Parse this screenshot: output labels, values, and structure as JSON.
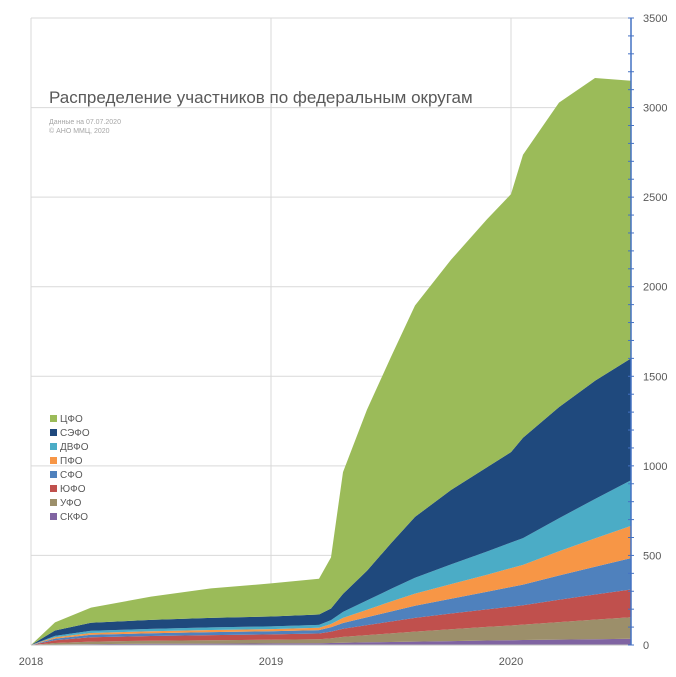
{
  "chart_data": {
    "type": "area",
    "stacked": true,
    "title": "Распределение участников по федеральным округам",
    "notes": [
      "Данные на 07.07.2020",
      "© АНО ММЦ, 2020"
    ],
    "x": [
      2018.0,
      2018.1,
      2018.25,
      2018.5,
      2018.75,
      2019.0,
      2019.2,
      2019.25,
      2019.3,
      2019.4,
      2019.5,
      2019.6,
      2019.75,
      2019.9,
      2020.0,
      2020.05,
      2020.2,
      2020.35,
      2020.5
    ],
    "x_ticks": [
      {
        "value": 2018,
        "label": "2018"
      },
      {
        "value": 2019,
        "label": "2019"
      },
      {
        "value": 2020,
        "label": "2020"
      }
    ],
    "y_ticks": [
      0,
      500,
      1000,
      1500,
      2000,
      2500,
      3000,
      3500
    ],
    "ylim": [
      0,
      3500
    ],
    "xlim": [
      2018.0,
      2020.5
    ],
    "y_axis_side": "right",
    "grid": true,
    "legend_position": "left",
    "series": [
      {
        "name": "СКФО",
        "color": "#8064a2",
        "values": [
          0,
          3,
          5,
          7,
          8,
          9,
          10,
          11,
          13,
          15,
          17,
          19,
          22,
          25,
          27,
          28,
          30,
          32,
          35
        ]
      },
      {
        "name": "УФО",
        "color": "#9c8f6a",
        "values": [
          0,
          8,
          14,
          17,
          19,
          20,
          22,
          26,
          32,
          40,
          48,
          56,
          66,
          76,
          82,
          86,
          98,
          110,
          120
        ]
      },
      {
        "name": "ЮФО",
        "color": "#c0504d",
        "values": [
          0,
          15,
          24,
          26,
          28,
          30,
          32,
          38,
          46,
          56,
          66,
          76,
          88,
          98,
          105,
          108,
          125,
          140,
          155
        ]
      },
      {
        "name": "СФО",
        "color": "#4f81bd",
        "values": [
          0,
          10,
          14,
          16,
          17,
          18,
          19,
          24,
          32,
          44,
          56,
          68,
          82,
          98,
          110,
          115,
          135,
          155,
          175
        ]
      },
      {
        "name": "ПФО",
        "color": "#f79646",
        "values": [
          0,
          7,
          10,
          11,
          12,
          12,
          13,
          18,
          28,
          42,
          56,
          68,
          82,
          95,
          105,
          110,
          135,
          158,
          180
        ]
      },
      {
        "name": "ДВФО",
        "color": "#4bacc6",
        "values": [
          0,
          8,
          12,
          13,
          14,
          15,
          16,
          22,
          34,
          52,
          70,
          88,
          110,
          130,
          143,
          150,
          185,
          220,
          255
        ]
      },
      {
        "name": "СЭФО",
        "color": "#1f497d",
        "values": [
          0,
          30,
          45,
          50,
          53,
          55,
          58,
          65,
          100,
          165,
          255,
          340,
          415,
          470,
          505,
          560,
          620,
          660,
          680
        ]
      },
      {
        "name": "ЦФО",
        "color": "#9bbb59",
        "values": [
          0,
          45,
          85,
          130,
          165,
          185,
          200,
          285,
          680,
          900,
          1040,
          1180,
          1285,
          1385,
          1440,
          1580,
          1700,
          1690,
          1550
        ]
      }
    ]
  }
}
